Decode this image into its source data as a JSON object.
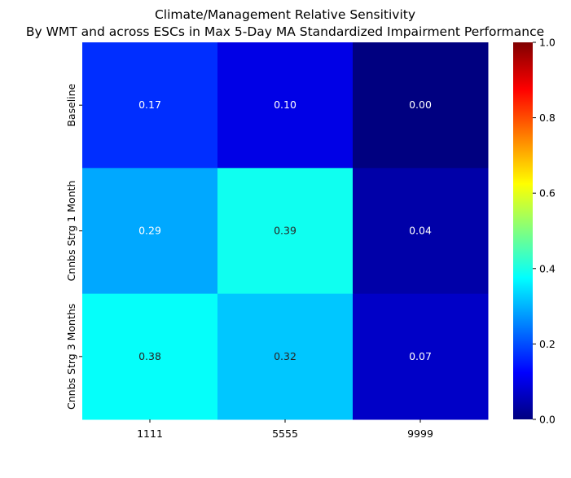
{
  "chart_data": {
    "type": "heatmap",
    "title": "Climate/Management Relative Sensitivity",
    "subtitle": "By WMT and across ESCs in Max 5-Day MA Standardized Impairment Performance",
    "xlabel": "",
    "ylabel": "",
    "x_categories": [
      "1111",
      "5555",
      "9999"
    ],
    "y_categories": [
      "Baseline",
      "Cnnbs Strg 1 Month",
      "Cnnbs Strg 3 Months"
    ],
    "values": [
      [
        0.17,
        0.1,
        0.0
      ],
      [
        0.29,
        0.39,
        0.04
      ],
      [
        0.38,
        0.32,
        0.07
      ]
    ],
    "value_labels": [
      [
        "0.17",
        "0.10",
        "0.00"
      ],
      [
        "0.29",
        "0.39",
        "0.04"
      ],
      [
        "0.38",
        "0.32",
        "0.07"
      ]
    ],
    "colormap": "jet",
    "vmin": 0.0,
    "vmax": 1.0,
    "colorbar_ticks": [
      "0.0",
      "0.2",
      "0.4",
      "0.6",
      "0.8",
      "1.0"
    ],
    "colorbar_tick_values": [
      0.0,
      0.2,
      0.4,
      0.6,
      0.8,
      1.0
    ]
  }
}
